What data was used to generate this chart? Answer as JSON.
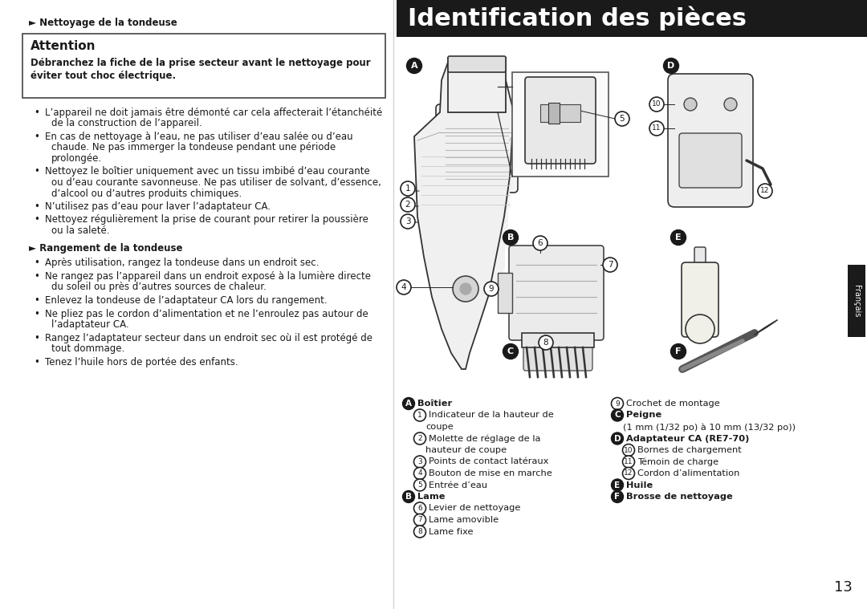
{
  "bg_color": "#ffffff",
  "page_number": "13",
  "header_section": "► Nettoyage de la tondeuse",
  "attention_title": "Attention",
  "attention_bold_line1": "Débranchez la fiche de la prise secteur avant le nettoyage pour",
  "attention_bold_line2": "éviter tout choc électrique.",
  "nettoyage_bullets": [
    "L’appareil ne doit jamais être démonté car cela affecterait l’étanchéité de la construction de l’appareil.",
    "En cas de nettoyage à l’eau, ne pas utiliser d’eau salée ou d’eau chaude. Ne pas immerger la tondeuse pendant une période prolonguée.",
    "Nettoyez le boîtier uniquement avec un tissu imbibé d’eau courante ou d’eau courante savonneuse. Ne pas utiliser de solvant, d’essence, d’alcool ou d’autres produits chimiques.",
    "N’utilisez pas d’eau pour laver l’adaptateur CA.",
    "Nettoyez régulièrement la prise de courant pour retirer la poussière ou la saleté."
  ],
  "nettoyage_bullets_wrapped": [
    [
      "L’appareil ne doit jamais être démonté car cela affecterait l’étanchéité",
      "de la construction de l’appareil."
    ],
    [
      "En cas de nettoyage à l’eau, ne pas utiliser d’eau salée ou d’eau",
      "chaude. Ne pas immerger la tondeuse pendant une période",
      "prolongée."
    ],
    [
      "Nettoyez le boîtier uniquement avec un tissu imbibé d’eau courante",
      "ou d’eau courante savonneuse. Ne pas utiliser de solvant, d’essence,",
      "d’alcool ou d’autres produits chimiques."
    ],
    [
      "N’utilisez pas d’eau pour laver l’adaptateur CA."
    ],
    [
      "Nettoyez régulièrement la prise de courant pour retirer la poussière",
      "ou la saleté."
    ]
  ],
  "rangement_header": "► Rangement de la tondeuse",
  "rangement_bullets_wrapped": [
    [
      "Après utilisation, rangez la tondeuse dans un endroit sec."
    ],
    [
      "Ne rangez pas l’appareil dans un endroit exposé à la lumière directe",
      "du soleil ou près d’autres sources de chaleur."
    ],
    [
      "Enlevez la tondeuse de l’adaptateur CA lors du rangement."
    ],
    [
      "Ne pliez pas le cordon d’alimentation et ne l’enroulez pas autour de",
      "l’adaptateur CA."
    ],
    [
      "Rangez l’adaptateur secteur dans un endroit sec où il est protégé de",
      "tout dommage."
    ],
    [
      "Tenez l’huile hors de portée des enfants."
    ]
  ],
  "right_title": "Identification des pièces",
  "right_title_bg": "#1a1a1a",
  "right_title_fg": "#ffffff",
  "francais_label": "Français",
  "captions_left": [
    {
      "text": "Boîtier",
      "label": "A",
      "bold": true,
      "indent": 0
    },
    {
      "text": "Indicateur de la hauteur de",
      "label": "1",
      "bold": false,
      "indent": 1
    },
    {
      "text": "coupe",
      "label": "",
      "bold": false,
      "indent": 2
    },
    {
      "text": "Molette de réglage de la",
      "label": "2",
      "bold": false,
      "indent": 1
    },
    {
      "text": "hauteur de coupe",
      "label": "",
      "bold": false,
      "indent": 2
    },
    {
      "text": "Points de contact latéraux",
      "label": "3",
      "bold": false,
      "indent": 1
    },
    {
      "text": "Bouton de mise en marche",
      "label": "4",
      "bold": false,
      "indent": 1
    },
    {
      "text": "Entrée d’eau",
      "label": "5",
      "bold": false,
      "indent": 1
    },
    {
      "text": "Lame",
      "label": "B",
      "bold": true,
      "indent": 0
    },
    {
      "text": "Levier de nettoyage",
      "label": "6",
      "bold": false,
      "indent": 1
    },
    {
      "text": "Lame amovible",
      "label": "7",
      "bold": false,
      "indent": 1
    },
    {
      "text": "Lame fixe",
      "label": "8",
      "bold": false,
      "indent": 1
    }
  ],
  "captions_right": [
    {
      "text": "Crochet de montage",
      "label": "9",
      "bold": false,
      "indent": 0
    },
    {
      "text": "Peigne",
      "label": "C",
      "bold": true,
      "indent": 0
    },
    {
      "text": "(1 mm (1/32 po) à 10 mm (13/32 po))",
      "label": "",
      "bold": false,
      "indent": 1
    },
    {
      "text": "Adaptateur CA (RE7-70)",
      "label": "D",
      "bold": true,
      "indent": 0
    },
    {
      "text": "Bornes de chargement",
      "label": "10",
      "bold": false,
      "indent": 1
    },
    {
      "text": "Témoin de charge",
      "label": "11",
      "bold": false,
      "indent": 1
    },
    {
      "text": "Cordon d’alimentation",
      "label": "12",
      "bold": false,
      "indent": 1
    },
    {
      "text": "Huile",
      "label": "E",
      "bold": true,
      "indent": 0
    },
    {
      "text": "Brosse de nettoyage",
      "label": "F",
      "bold": true,
      "indent": 0
    }
  ]
}
